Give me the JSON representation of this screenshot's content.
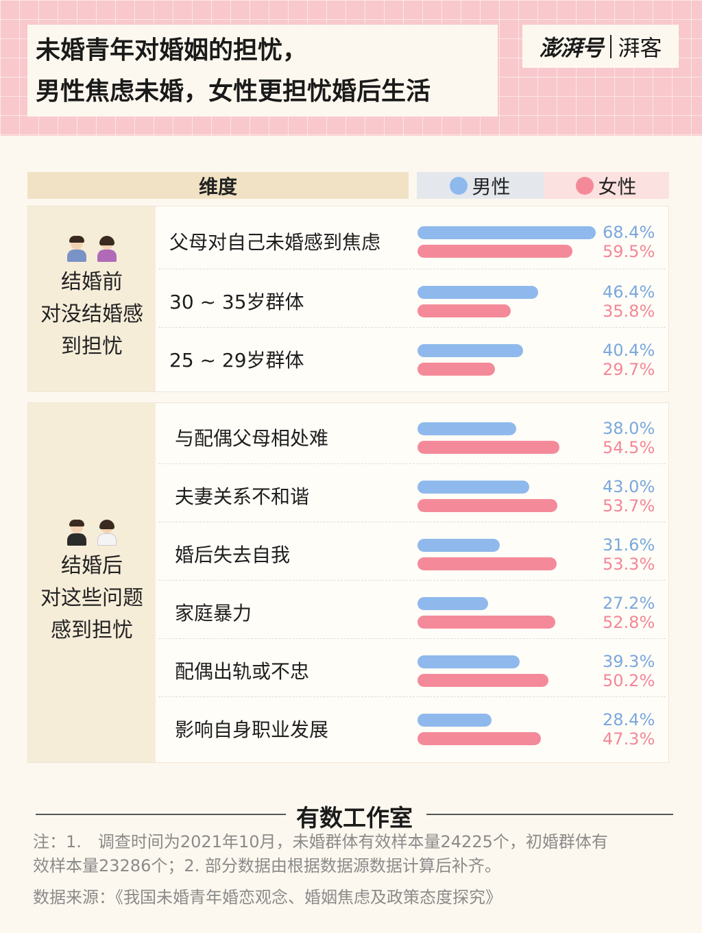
{
  "header": {
    "title_line1": "未婚青年对婚姻的担忧，",
    "title_line2": "男性焦虑未婚，女性更担忧婚后生活",
    "logo_main": "澎湃号",
    "logo_sub": "湃客"
  },
  "table_header": {
    "dimension": "维度",
    "male": "男性",
    "female": "女性"
  },
  "colors": {
    "male": "#8fb9ec",
    "female": "#f48a99",
    "header_bg": "#f8c8cc"
  },
  "sections": [
    {
      "emoji_icons": [
        "man-shrugging-icon",
        "woman-shrugging-icon"
      ],
      "label_lines": [
        "结婚前",
        "对没结婚感",
        "到担忧"
      ]
    },
    {
      "emoji_icons": [
        "groom-icon",
        "bride-icon"
      ],
      "label_lines": [
        "结婚后",
        "对这些问题",
        "感到担忧"
      ]
    }
  ],
  "chart_data": {
    "type": "bar",
    "orientation": "horizontal",
    "series_names": [
      "男性",
      "女性"
    ],
    "groups": [
      {
        "name": "结婚前 对没结婚感到担忧",
        "items": [
          {
            "category": "父母对自己未婚感到焦虑",
            "male": 68.4,
            "female": 59.5,
            "male_label": "68.4%",
            "female_label": "59.5%"
          },
          {
            "category": "30 ~ 35岁群体",
            "male": 46.4,
            "female": 35.8,
            "male_label": "46.4%",
            "female_label": "35.8%"
          },
          {
            "category": "25 ~ 29岁群体",
            "male": 40.4,
            "female": 29.7,
            "male_label": "40.4%",
            "female_label": "29.7%"
          }
        ]
      },
      {
        "name": "结婚后 对这些问题感到担忧",
        "items": [
          {
            "category": "与配偶父母相处难",
            "male": 38.0,
            "female": 54.5,
            "male_label": "38.0%",
            "female_label": "54.5%"
          },
          {
            "category": "夫妻关系不和谐",
            "male": 43.0,
            "female": 53.7,
            "male_label": "43.0%",
            "female_label": "53.7%"
          },
          {
            "category": "婚后失去自我",
            "male": 31.6,
            "female": 53.3,
            "male_label": "31.6%",
            "female_label": "53.3%"
          },
          {
            "category": "家庭暴力",
            "male": 27.2,
            "female": 52.8,
            "male_label": "27.2%",
            "female_label": "52.8%"
          },
          {
            "category": "配偶出轨或不忠",
            "male": 39.3,
            "female": 50.2,
            "male_label": "39.3%",
            "female_label": "50.2%"
          },
          {
            "category": "影响自身职业发展",
            "male": 28.4,
            "female": 47.3,
            "male_label": "28.4%",
            "female_label": "47.3%"
          }
        ]
      }
    ],
    "max_value": 68.4
  },
  "footer": {
    "studio": "有数工作室",
    "note_line1": "注：1.　调查时间为2021年10月，未婚群体有效样本量24225个，初婚群体有",
    "note_line2": "效样本量23286个；2. 部分数据由根据数据源数据计算后补齐。",
    "source": "数据来源：《我国未婚青年婚恋观念、婚姻焦虑及政策态度探究》"
  }
}
